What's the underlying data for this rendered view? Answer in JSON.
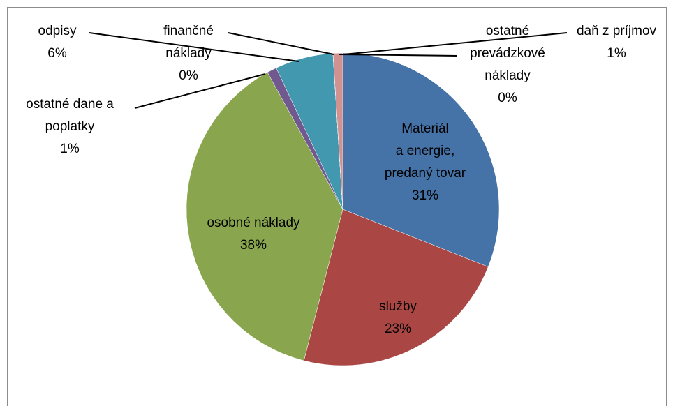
{
  "chart_data": {
    "type": "pie",
    "categories": [
      "Materiál\na energie,\npredaný tovar",
      "služby",
      "osobné náklady",
      "ostatné dane a\npoplatky",
      "odpisy",
      "finančné\nnáklady",
      "ostatné\nprevádzkové\nnáklady",
      "daň z príjmov"
    ],
    "values": [
      31,
      23,
      38,
      1,
      6,
      0,
      0,
      1
    ],
    "value_labels": [
      "31%",
      "23%",
      "38%",
      "1%",
      "6%",
      "0%",
      "0%",
      "1%"
    ],
    "colors": [
      "#4572a7",
      "#aa4643",
      "#89a54e",
      "#71588f",
      "#4198af",
      "#db843d",
      "#93a9cf",
      "#d19392"
    ]
  }
}
